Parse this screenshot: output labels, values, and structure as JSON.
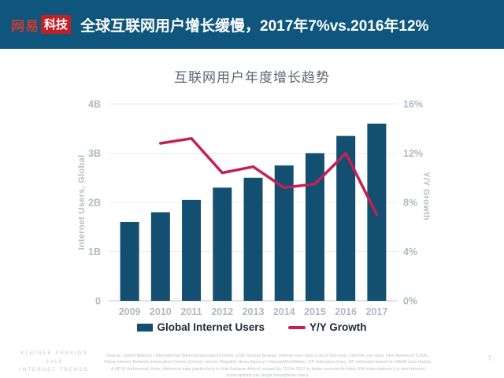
{
  "header": {
    "logo_brand": "网易",
    "logo_sub": "科技",
    "title": "全球互联网用户增长缓慢，2017年7%vs.2016年12%"
  },
  "chart_data": {
    "type": "combo-bar-line",
    "title": "互联网用户年度增长趋势",
    "categories": [
      "2009",
      "2010",
      "2011",
      "2012",
      "2013",
      "2014",
      "2015",
      "2016",
      "2017"
    ],
    "series": [
      {
        "name": "Global Internet Users",
        "type": "bar",
        "axis": "left",
        "unit": "billions",
        "values": [
          1.6,
          1.8,
          2.05,
          2.3,
          2.5,
          2.75,
          3.0,
          3.35,
          3.6
        ]
      },
      {
        "name": "Y/Y Growth",
        "type": "line",
        "axis": "right",
        "unit": "%",
        "values": [
          null,
          12.8,
          13.2,
          10.4,
          10.9,
          9.2,
          9.5,
          12.0,
          7.0
        ]
      }
    ],
    "left_axis": {
      "label": "Internet Users, Global",
      "ticks": [
        "0",
        "1B",
        "2B",
        "3B",
        "4B"
      ],
      "lim": [
        0,
        4
      ]
    },
    "right_axis": {
      "label": "Y/Y Growth",
      "ticks": [
        "0%",
        "4%",
        "8%",
        "12%",
        "16%"
      ],
      "lim": [
        0,
        16
      ]
    },
    "legend_position": "bottom",
    "grid": "horizontal"
  },
  "footer": {
    "brand_lines": [
      "KLEINER PERKINS",
      "2018",
      "INTERNET TRENDS"
    ],
    "source": "Source: United Nations / International Telecommunications Union, USA Census Bureau. Internet user data is as of mid-year. Internet user data: Pew Research (USA), China Internet Network Information Center (China), Islamic Republic News Agency / InternetWorldStats / KP estimates (Iran), KP estimates based on IAMAI data (India), & APJII (Indonesia). Note: Historical data (particularly in Sub-Saharan Africa) revised by ITU in 2017 to better account for dual-SIM subscriptions (i.e. two Internet subscriptions per single smartphone user).",
    "page_number": "7"
  },
  "colors": {
    "header_bg": "#0e567d",
    "logo_red": "#c02026",
    "bar": "#134f71",
    "line": "#c41f56",
    "grid": "#ececee",
    "axis_line": "#d8dbde",
    "axis_text": "#b3b8bf",
    "title_text": "#5a6470"
  }
}
